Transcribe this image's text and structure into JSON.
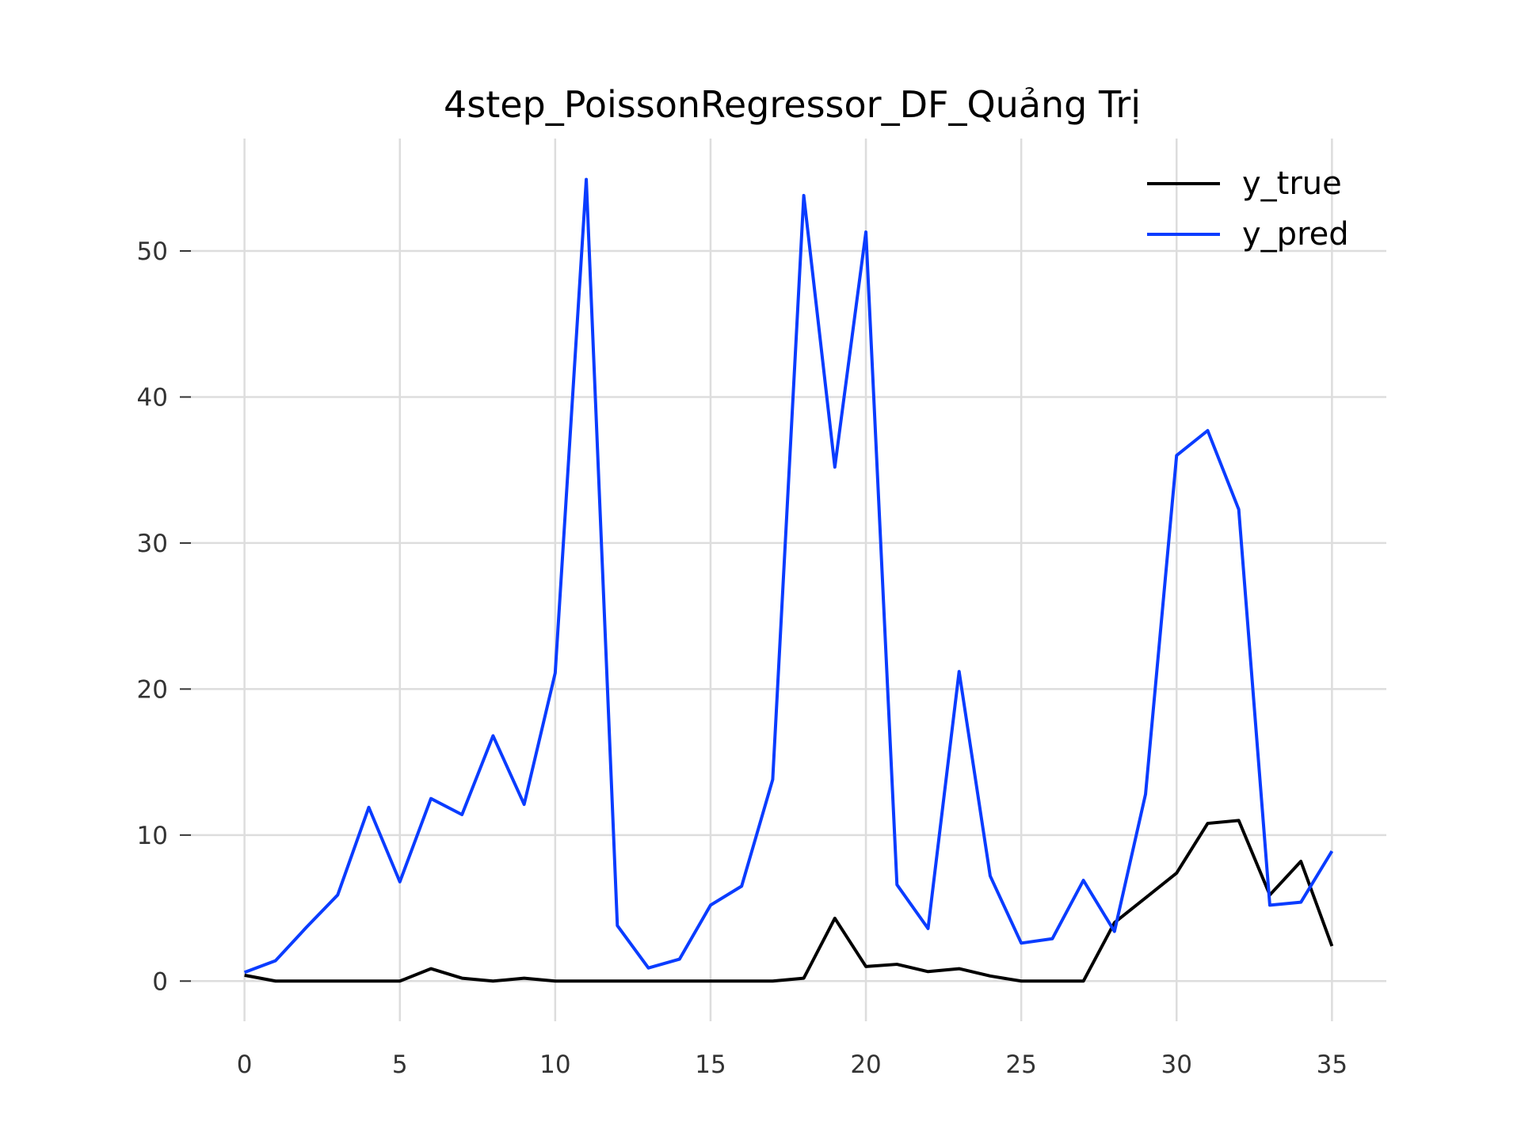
{
  "chart_data": {
    "type": "line",
    "title": "4step_PoissonRegressor_DF_Quảng Trị",
    "xlabel": "",
    "ylabel": "",
    "xlim": [
      -1.75,
      36.75
    ],
    "ylim": [
      -2.75,
      57.7
    ],
    "x_ticks": [
      0,
      5,
      10,
      15,
      20,
      25,
      30,
      35
    ],
    "y_ticks": [
      0,
      10,
      20,
      30,
      40,
      50
    ],
    "grid": true,
    "legend_position": "top-right",
    "x": [
      0,
      1,
      2,
      3,
      4,
      5,
      6,
      7,
      8,
      9,
      10,
      11,
      12,
      13,
      14,
      15,
      16,
      17,
      18,
      19,
      20,
      21,
      22,
      23,
      24,
      25,
      26,
      27,
      28,
      29,
      30,
      31,
      32,
      33,
      34,
      35
    ],
    "series": [
      {
        "name": "y_true",
        "color": "#000000",
        "values": [
          0.4,
          0,
          0,
          0,
          0,
          0,
          0.85,
          0.2,
          0,
          0.2,
          0,
          0,
          0,
          0,
          0,
          0,
          0,
          0,
          0.2,
          4.3,
          1.0,
          1.15,
          0.65,
          0.85,
          0.35,
          0,
          0,
          0,
          4.0,
          5.7,
          7.4,
          10.8,
          11.0,
          5.9,
          8.2,
          2.4
        ]
      },
      {
        "name": "y_pred",
        "color": "#0a3cff",
        "values": [
          0.6,
          1.4,
          3.7,
          5.9,
          11.9,
          6.8,
          12.5,
          11.4,
          16.8,
          12.1,
          21.1,
          54.9,
          3.8,
          0.9,
          1.5,
          5.2,
          6.5,
          13.8,
          53.8,
          35.2,
          51.3,
          6.6,
          3.6,
          21.2,
          7.2,
          2.6,
          2.9,
          6.9,
          3.4,
          12.8,
          36.0,
          37.7,
          32.3,
          5.2,
          5.4,
          8.9
        ]
      }
    ]
  }
}
